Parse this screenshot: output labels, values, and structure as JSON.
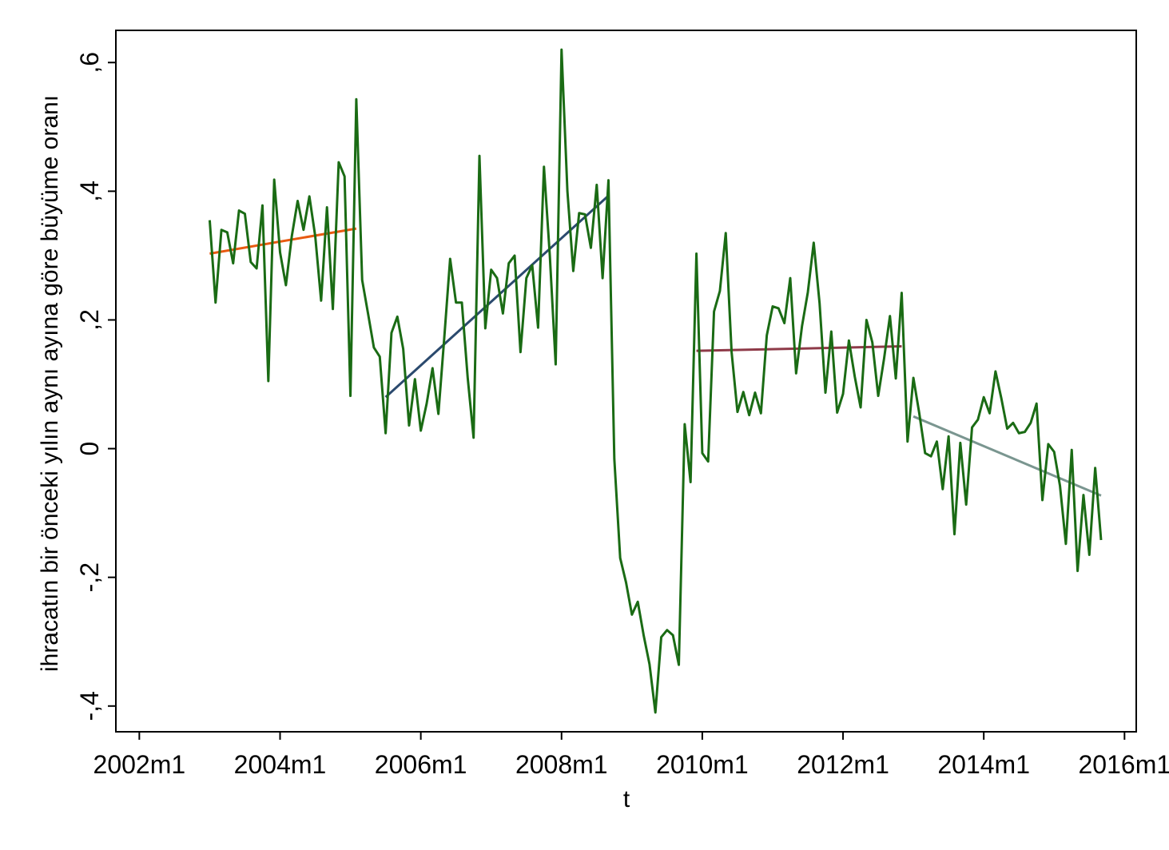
{
  "chart_data": {
    "type": "line",
    "title": "",
    "xlabel": "t",
    "ylabel": "ihracatın bir önceki yılın aynı ayına göre büyüme oranı",
    "x_axis": {
      "unit": "month",
      "range": [
        "2001-09",
        "2016-03"
      ],
      "ticks": [
        {
          "date": "2002-01",
          "label": "2002m1"
        },
        {
          "date": "2004-01",
          "label": "2004m1"
        },
        {
          "date": "2006-01",
          "label": "2006m1"
        },
        {
          "date": "2008-01",
          "label": "2008m1"
        },
        {
          "date": "2010-01",
          "label": "2010m1"
        },
        {
          "date": "2012-01",
          "label": "2012m1"
        },
        {
          "date": "2014-01",
          "label": "2014m1"
        },
        {
          "date": "2016-01",
          "label": "2016m1"
        }
      ]
    },
    "y_axis": {
      "range": [
        -0.44,
        0.65
      ],
      "ticks": [
        {
          "value": -0.4,
          "label": "-,4"
        },
        {
          "value": -0.2,
          "label": "-,2"
        },
        {
          "value": 0,
          "label": "0"
        },
        {
          "value": 0.2,
          "label": ",2"
        },
        {
          "value": 0.4,
          "label": ",4"
        },
        {
          "value": 0.6,
          "label": ",6"
        }
      ]
    },
    "grid": false,
    "legend": "none",
    "main_series": {
      "color": "#1a6b14",
      "start": "2003-01",
      "values": [
        0.355,
        0.227,
        0.34,
        0.336,
        0.288,
        0.37,
        0.365,
        0.29,
        0.28,
        0.378,
        0.105,
        0.418,
        0.305,
        0.254,
        0.33,
        0.385,
        0.34,
        0.392,
        0.33,
        0.23,
        0.375,
        0.217,
        0.445,
        0.423,
        0.082,
        0.543,
        0.262,
        0.21,
        0.157,
        0.143,
        0.024,
        0.18,
        0.205,
        0.155,
        0.036,
        0.108,
        0.028,
        0.07,
        0.125,
        0.054,
        0.172,
        0.295,
        0.227,
        0.227,
        0.11,
        0.017,
        0.455,
        0.187,
        0.278,
        0.265,
        0.21,
        0.288,
        0.3,
        0.15,
        0.265,
        0.285,
        0.188,
        0.438,
        0.3,
        0.131,
        0.62,
        0.4,
        0.276,
        0.366,
        0.364,
        0.312,
        0.41,
        0.265,
        0.417,
        -0.016,
        -0.17,
        -0.208,
        -0.258,
        -0.238,
        -0.29,
        -0.335,
        -0.41,
        -0.293,
        -0.282,
        -0.29,
        -0.336,
        0.038,
        -0.052,
        0.303,
        -0.007,
        -0.02,
        0.213,
        0.245,
        0.335,
        0.15,
        0.057,
        0.088,
        0.052,
        0.087,
        0.055,
        0.176,
        0.221,
        0.218,
        0.195,
        0.265,
        0.117,
        0.19,
        0.243,
        0.32,
        0.226,
        0.087,
        0.182,
        0.056,
        0.085,
        0.168,
        0.112,
        0.064,
        0.2,
        0.165,
        0.082,
        0.14,
        0.206,
        0.109,
        0.242,
        0.011,
        0.11,
        0.055,
        -0.007,
        -0.012,
        0.011,
        -0.063,
        0.019,
        -0.133,
        0.009,
        -0.087,
        0.033,
        0.045,
        0.08,
        0.055,
        0.12,
        0.078,
        0.031,
        0.04,
        0.024,
        0.026,
        0.04,
        0.07,
        -0.08,
        0.007,
        -0.005,
        -0.058,
        -0.148,
        -0.002,
        -0.19,
        -0.072,
        -0.165,
        -0.03,
        -0.142
      ]
    },
    "trend_lines": [
      {
        "color": "#e85a12",
        "x": [
          "2003-01",
          "2005-02"
        ],
        "y": [
          0.303,
          0.342
        ]
      },
      {
        "color": "#2b4a6e",
        "x": [
          "2005-07",
          "2008-09"
        ],
        "y": [
          0.08,
          0.393
        ]
      },
      {
        "color": "#8e3a48",
        "x": [
          "2009-12",
          "2012-11"
        ],
        "y": [
          0.152,
          0.159
        ]
      },
      {
        "color": "#7a9690",
        "x": [
          "2013-01",
          "2015-09"
        ],
        "y": [
          0.05,
          -0.073
        ]
      }
    ]
  }
}
